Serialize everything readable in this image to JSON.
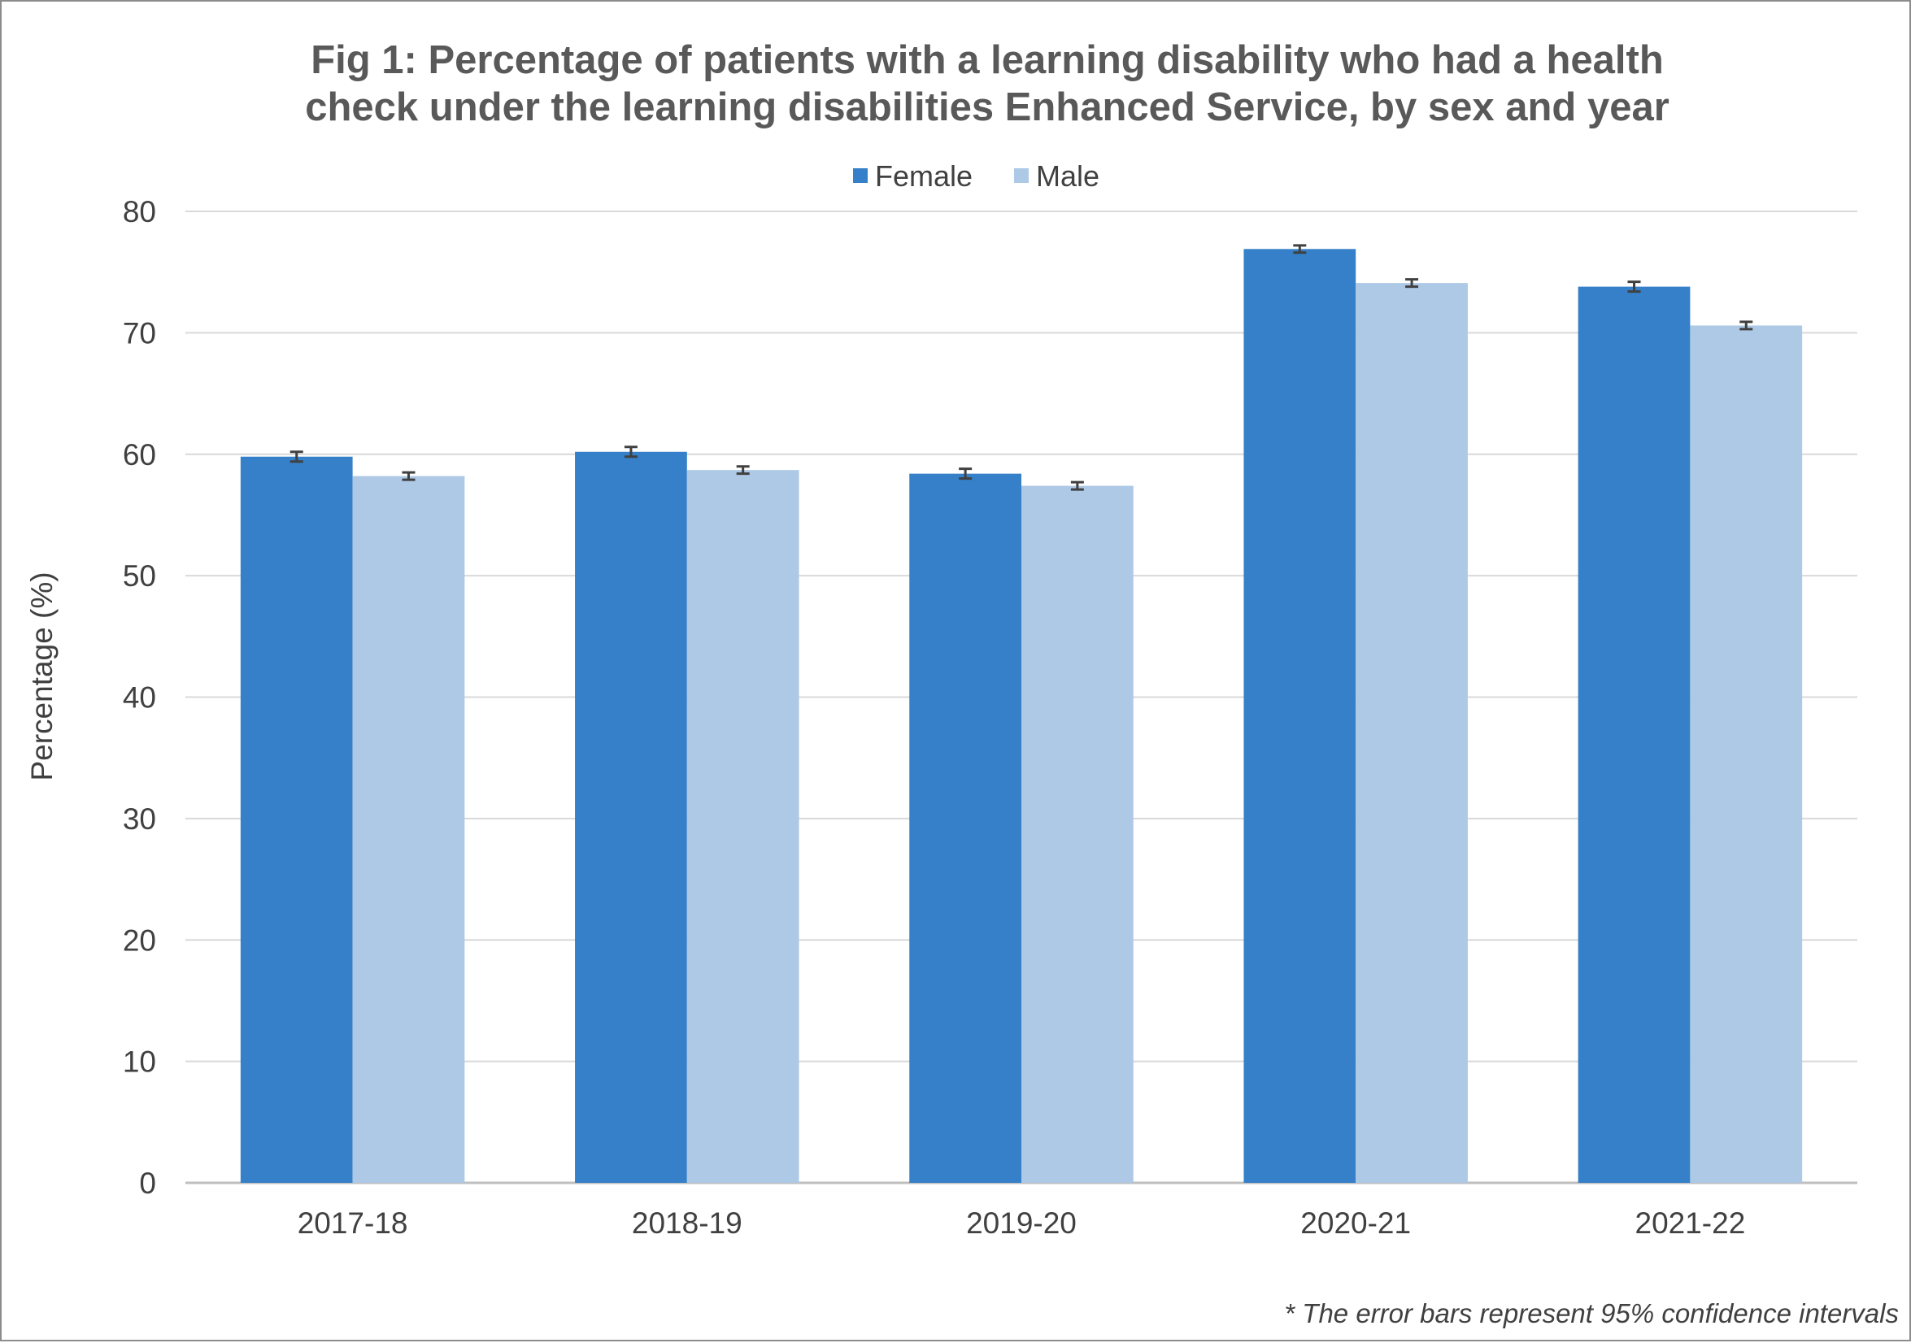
{
  "chart_data": {
    "type": "bar",
    "title_lines": [
      "Fig 1: Percentage of patients with a learning disability who had a health",
      "check under the learning disabilities Enhanced Service, by sex and year"
    ],
    "ylabel": "Percentage (%)",
    "xlabel": "",
    "ylim": [
      0,
      80
    ],
    "yticks": [
      "0",
      "10",
      "20",
      "30",
      "40",
      "50",
      "60",
      "70",
      "80"
    ],
    "categories": [
      "2017-18",
      "2018-19",
      "2019-20",
      "2020-21",
      "2021-22"
    ],
    "series": [
      {
        "name": "Female",
        "color": "#3580C8",
        "values": [
          59.8,
          60.2,
          58.4,
          76.9,
          73.8
        ],
        "ci_low": [
          59.4,
          59.8,
          58.0,
          76.6,
          73.4
        ],
        "ci_high": [
          60.2,
          60.6,
          58.8,
          77.2,
          74.2
        ]
      },
      {
        "name": "Male",
        "color": "#ADC9E6",
        "values": [
          58.2,
          58.7,
          57.4,
          74.1,
          70.6
        ],
        "ci_low": [
          57.9,
          58.4,
          57.1,
          73.8,
          70.3
        ],
        "ci_high": [
          58.5,
          59.0,
          57.7,
          74.4,
          70.9
        ]
      }
    ],
    "grid": true,
    "legend_position": "top-center",
    "error_bar_color": "#404040",
    "footnote": "* The error bars represent 95% confidence intervals"
  }
}
